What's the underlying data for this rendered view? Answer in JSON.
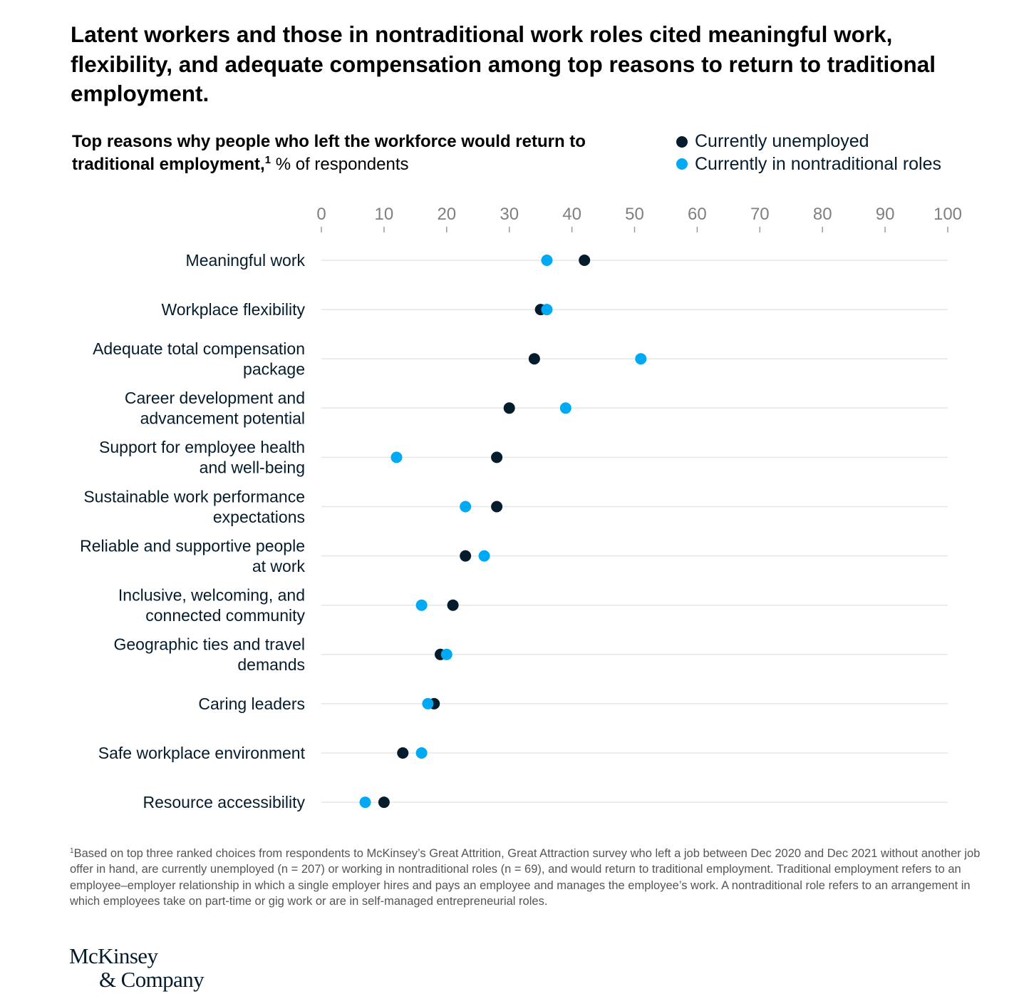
{
  "headline": "Latent workers and those in nontraditional work roles cited meaningful work, flexibility, and adequate compensation among top reasons to return to traditional employment.",
  "subtitle": {
    "bold": "Top reasons why people who left the workforce would return to traditional employment,",
    "footnote_mark": "1",
    "unit": " % of respondents"
  },
  "colors": {
    "unemployed": "#051c2c",
    "nontraditional": "#00a9f4",
    "gridline": "#e6e6e6",
    "tick_text": "#7f7f7f"
  },
  "chart_data": {
    "type": "scatter",
    "title": "Top reasons why people who left the workforce would return to traditional employment",
    "xlabel": "% of respondents",
    "xlim": [
      0,
      100
    ],
    "xticks": [
      "0",
      "10",
      "20",
      "30",
      "40",
      "50",
      "60",
      "70",
      "80",
      "90",
      "100"
    ],
    "legend_position": "top-right",
    "categories": [
      [
        "Meaningful work"
      ],
      [
        "Workplace flexibility"
      ],
      [
        "Adequate total compensation",
        "package"
      ],
      [
        "Career development and",
        "advancement potential"
      ],
      [
        "Support for employee health",
        "and well-being"
      ],
      [
        "Sustainable work performance",
        "expectations"
      ],
      [
        "Reliable and supportive people",
        "at work"
      ],
      [
        "Inclusive, welcoming, and",
        "connected community"
      ],
      [
        "Geographic ties and travel",
        "demands"
      ],
      [
        "Caring leaders"
      ],
      [
        "Safe workplace environment"
      ],
      [
        "Resource accessibility"
      ]
    ],
    "series": [
      {
        "name": "Currently unemployed",
        "color": "#051c2c",
        "values": [
          42,
          35,
          34,
          30,
          28,
          28,
          23,
          21,
          19,
          18,
          13,
          10
        ]
      },
      {
        "name": "Currently in nontraditional roles",
        "color": "#00a9f4",
        "values": [
          36,
          36,
          51,
          39,
          12,
          23,
          26,
          16,
          20,
          17,
          16,
          7
        ]
      }
    ]
  },
  "footnote": {
    "mark": "1",
    "text": "Based on top three ranked choices from respondents to McKinsey’s Great Attrition, Great Attraction survey who left a job between Dec 2020 and Dec 2021 without another job offer in hand, are currently unemployed (n = 207) or working in nontraditional roles (n = 69), and would return to traditional employment. Traditional employment refers to an employee–employer relationship in which a single employer hires and pays an employee and manages the employee’s work. A nontraditional role refers to an arrangement in which employees take on part-time or gig work or are in self-managed entrepreneurial roles."
  },
  "logo": {
    "line1": "McKinsey",
    "line2": "& Company"
  }
}
